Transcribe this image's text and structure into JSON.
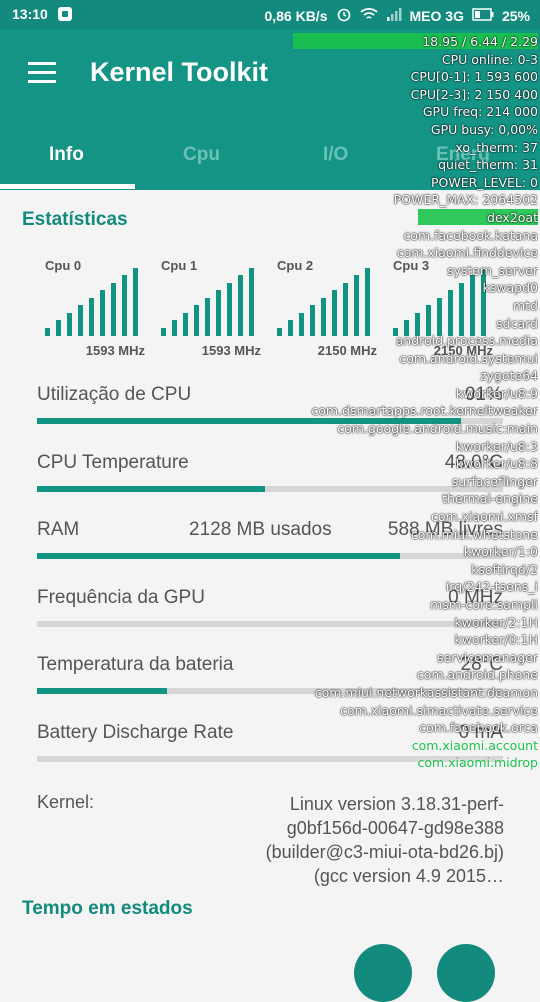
{
  "statusbar": {
    "time": "13:10",
    "speed": "0,86 KB/s",
    "carrier": "MEO 3G",
    "battery": "25%"
  },
  "appbar": {
    "title": "Kernel Toolkit",
    "tabs": [
      {
        "label": "Info",
        "active": true
      },
      {
        "label": "Cpu",
        "active": false
      },
      {
        "label": "Energ",
        "active": false
      },
      {
        "label": "I/O",
        "active": false
      }
    ]
  },
  "statistics": {
    "title": "Estatísticas",
    "cpus": [
      {
        "label": "Cpu 0",
        "freq": "1593 MHz",
        "levels": [
          0.12,
          0.23,
          0.34,
          0.45,
          0.56,
          0.67,
          0.78,
          0.89,
          1.0
        ]
      },
      {
        "label": "Cpu 1",
        "freq": "1593 MHz",
        "levels": [
          0.12,
          0.23,
          0.34,
          0.45,
          0.56,
          0.67,
          0.78,
          0.89,
          1.0
        ]
      },
      {
        "label": "Cpu 2",
        "freq": "2150 MHz",
        "levels": [
          0.12,
          0.23,
          0.34,
          0.45,
          0.56,
          0.67,
          0.78,
          0.89,
          1.0
        ]
      },
      {
        "label": "Cpu 3",
        "freq": "2150 MHz",
        "levels": [
          0.12,
          0.23,
          0.34,
          0.45,
          0.56,
          0.67,
          0.78,
          0.89,
          1.0
        ]
      }
    ]
  },
  "stats": [
    {
      "label": "Utilização de CPU",
      "mid": "",
      "value": "91%",
      "fraction": 0.91
    },
    {
      "label": "CPU Temperature",
      "mid": "",
      "value": "48.0°C",
      "fraction": 0.49
    },
    {
      "label": "RAM",
      "mid": "2128 MB usados",
      "value": "588 MB livres",
      "fraction": 0.78
    },
    {
      "label": "Frequência da GPU",
      "mid": "",
      "value": "0 MHz",
      "fraction": 0.0
    },
    {
      "label": "Temperatura da bateria",
      "mid": "",
      "value": "28°C",
      "fraction": 0.28
    },
    {
      "label": "Battery Discharge Rate",
      "mid": "",
      "value": "0 mA",
      "fraction": 0.0
    }
  ],
  "kernel": {
    "label": "Kernel:",
    "value": "Linux version 3.18.31-perf-g0bf156d-00647-gd98e388 (builder@c3-miui-ota-bd26.bj) (gcc version 4.9 2015…"
  },
  "time_in_state": {
    "title": "Tempo em estados"
  },
  "overlay": {
    "lines": [
      "18.95 / 6.44 / 2.29",
      "CPU online: 0-3",
      "CPU[0-1]: 1 593 600",
      "CPU[2-3]: 2 150 400",
      "GPU freq: 214 000",
      "GPU busy: 0,00%",
      "xo_therm: 37",
      "quiet_therm: 31",
      "POWER_LEVEL: 0",
      "POWER_MAX: 2064502",
      "dex2oat",
      "com.facebook.katana",
      "com.xiaomi.finddevice",
      "system_server",
      "kswapd0",
      "mtd",
      "sdcard",
      "android.process.media",
      "com.android.systemui",
      "zygote64",
      "kworker/u8:9",
      "com.dsmartapps.root.kerneltweaker",
      "com.google.android.music:main",
      "kworker/u8:3",
      "kworker/u8:8",
      "surfaceflinger",
      "thermal-engine",
      "com.xiaomi.xmsf",
      "com.miui.whetstone",
      "kworker/1:0",
      "ksoftirqd/2",
      "irq/242-tsens_i",
      "msm-core:sampli",
      "kworker/2:1H",
      "kworker/0:1H",
      "servicemanager",
      "com.android.phone",
      "com.miui.networkassistant.deamon",
      "com.xiaomi.simactivate.service",
      "com.facebook.orca",
      "com.xiaomi.account",
      "com.xiaomi.midrop"
    ],
    "bars": {
      "0": 1.0,
      "10": 0.49
    },
    "green_lines": [
      40,
      41
    ],
    "bar_color": "#19c34a",
    "accent": "#128a7d"
  }
}
